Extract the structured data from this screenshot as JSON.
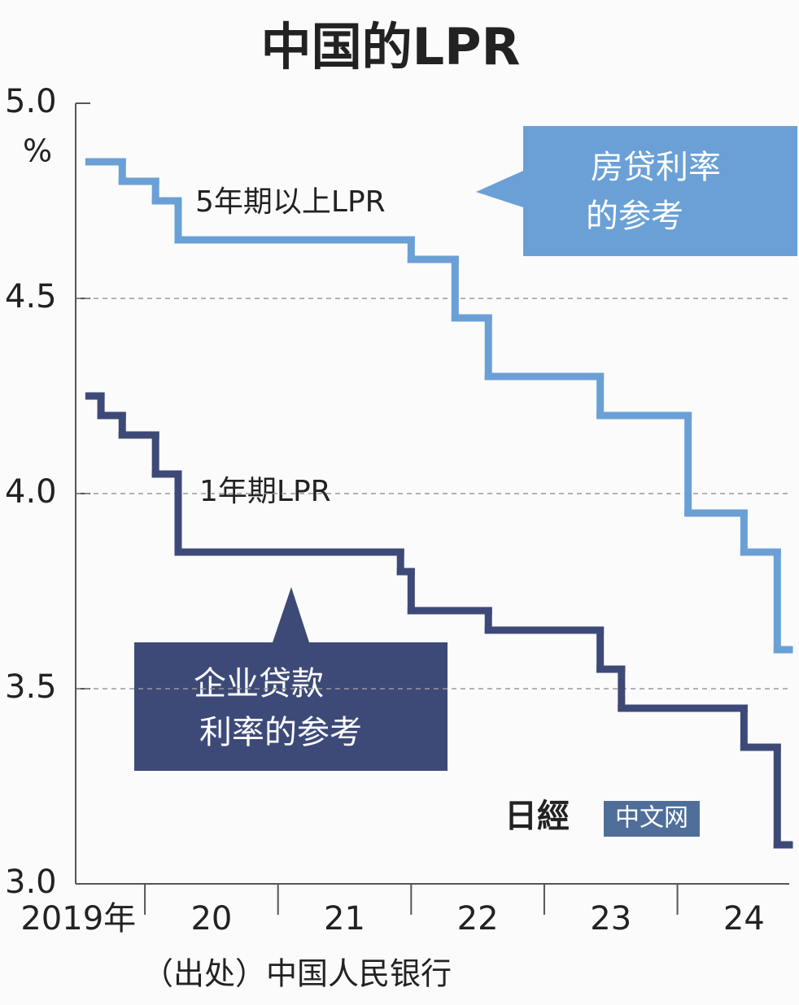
{
  "chart_data": {
    "type": "step-line",
    "title": "中国的LPR",
    "y_unit": "%",
    "xlim": [
      2019.48,
      2024.84
    ],
    "ylim": [
      3,
      5
    ],
    "yticks": [
      {
        "value": 5,
        "label": "5.0"
      },
      4.5,
      {
        "value": 4,
        "label": "4.0"
      },
      3.5,
      {
        "value": 3,
        "label": "3.0"
      }
    ],
    "xticks": [
      {
        "value": 2019.5,
        "label": "2019年"
      },
      {
        "value": 2020.5,
        "label": "20"
      },
      {
        "value": 2021.5,
        "label": "21"
      },
      {
        "value": 2022.5,
        "label": "22"
      },
      {
        "value": 2023.5,
        "label": "23"
      },
      {
        "value": 2024.5,
        "label": "24"
      }
    ],
    "xtick_marks": [
      2020,
      2021,
      2022,
      2023,
      2024
    ],
    "grid": true,
    "series": [
      {
        "name": "5年期以上LPR",
        "color": "#6aa0d6",
        "x": [
          2019.58,
          2019.83,
          2020.08,
          2020.25,
          2022.0,
          2022.33,
          2022.58,
          2023.42,
          2024.08,
          2024.5,
          2024.75
        ],
        "values": [
          4.85,
          4.8,
          4.75,
          4.65,
          4.6,
          4.45,
          4.3,
          4.2,
          3.95,
          3.85,
          3.6
        ]
      },
      {
        "name": "1年期LPR",
        "color": "#3d4a78",
        "x": [
          2019.58,
          2019.67,
          2019.83,
          2020.08,
          2020.25,
          2021.92,
          2022.0,
          2022.58,
          2023.42,
          2023.58,
          2024.5,
          2024.75
        ],
        "values": [
          4.25,
          4.2,
          4.15,
          4.05,
          3.85,
          3.8,
          3.7,
          3.65,
          3.55,
          3.45,
          3.35,
          3.1
        ]
      }
    ],
    "annotations": [
      {
        "lines": [
          "房贷利率",
          "的参考"
        ]
      },
      {
        "lines": [
          "企业贷款",
          "利率的参考"
        ]
      }
    ],
    "source": "（出处）中国人民银行",
    "logo": {
      "mark": "日經",
      "text": "中文网"
    }
  }
}
